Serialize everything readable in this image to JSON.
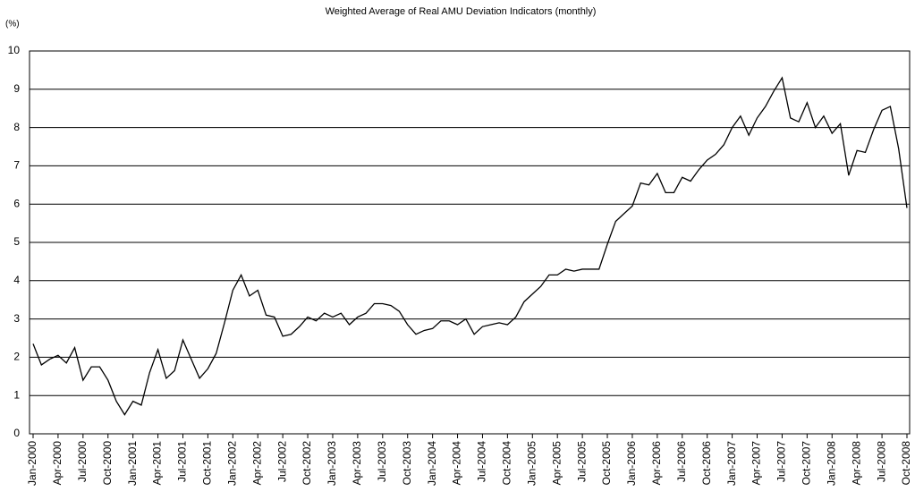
{
  "chart_data": {
    "type": "line",
    "title": "Weighted Average of Real AMU Deviation Indicators (monthly)",
    "y_label": "(%)",
    "categories": [
      "Jan-2000",
      null,
      null,
      "Apr-2000",
      null,
      null,
      "Jul-2000",
      null,
      null,
      "Oct-2000",
      null,
      null,
      "Jan-2001",
      null,
      null,
      "Apr-2001",
      null,
      null,
      "Jul-2001",
      null,
      null,
      "Oct-2001",
      null,
      null,
      "Jan-2002",
      null,
      null,
      "Apr-2002",
      null,
      null,
      "Jul-2002",
      null,
      null,
      "Oct-2002",
      null,
      null,
      "Jan-2003",
      null,
      null,
      "Apr-2003",
      null,
      null,
      "Jul-2003",
      null,
      null,
      "Oct-2003",
      null,
      null,
      "Jan-2004",
      null,
      null,
      "Apr-2004",
      null,
      null,
      "Jul-2004",
      null,
      null,
      "Oct-2004",
      null,
      null,
      "Jan-2005",
      null,
      null,
      "Apr-2005",
      null,
      null,
      "Jul-2005",
      null,
      null,
      "Oct-2005",
      null,
      null,
      "Jan-2006",
      null,
      null,
      "Apr-2006",
      null,
      null,
      "Jul-2006",
      null,
      null,
      "Oct-2006",
      null,
      null,
      "Jan-2007",
      null,
      null,
      "Apr-2007",
      null,
      null,
      "Jul-2007",
      null,
      null,
      "Oct-2007",
      null,
      null,
      "Jan-2008",
      null,
      null,
      "Apr-2008",
      null,
      null,
      "Jul-2008",
      null,
      null,
      "Oct-2008"
    ],
    "values": [
      2.35,
      1.8,
      1.95,
      2.05,
      1.85,
      2.25,
      1.4,
      1.75,
      1.75,
      1.4,
      0.85,
      0.5,
      0.85,
      0.75,
      1.6,
      2.2,
      1.45,
      1.65,
      2.45,
      1.95,
      1.45,
      1.7,
      2.1,
      2.9,
      3.75,
      4.15,
      3.6,
      3.75,
      3.1,
      3.05,
      2.55,
      2.6,
      2.8,
      3.05,
      2.95,
      3.15,
      3.05,
      3.15,
      2.85,
      3.05,
      3.15,
      3.4,
      3.4,
      3.35,
      3.2,
      2.85,
      2.6,
      2.7,
      2.75,
      2.95,
      2.95,
      2.85,
      3.0,
      2.6,
      2.8,
      2.85,
      2.9,
      2.85,
      3.05,
      3.45,
      3.65,
      3.85,
      4.15,
      4.15,
      4.3,
      4.25,
      4.3,
      4.3,
      4.3,
      4.95,
      5.55,
      5.75,
      5.95,
      6.55,
      6.5,
      6.8,
      6.3,
      6.3,
      6.7,
      6.6,
      6.9,
      7.15,
      7.3,
      7.55,
      8.0,
      8.3,
      7.8,
      8.25,
      8.55,
      8.95,
      9.3,
      8.25,
      8.15,
      8.65,
      8.0,
      8.3,
      7.85,
      8.1,
      6.75,
      7.4,
      7.35,
      7.95,
      8.45,
      8.55,
      7.45,
      5.9
    ],
    "color": "#000000",
    "ylim": [
      0,
      10
    ],
    "yticks": [
      0,
      1,
      2,
      3,
      4,
      5,
      6,
      7,
      8,
      9,
      10
    ],
    "grid": true
  }
}
